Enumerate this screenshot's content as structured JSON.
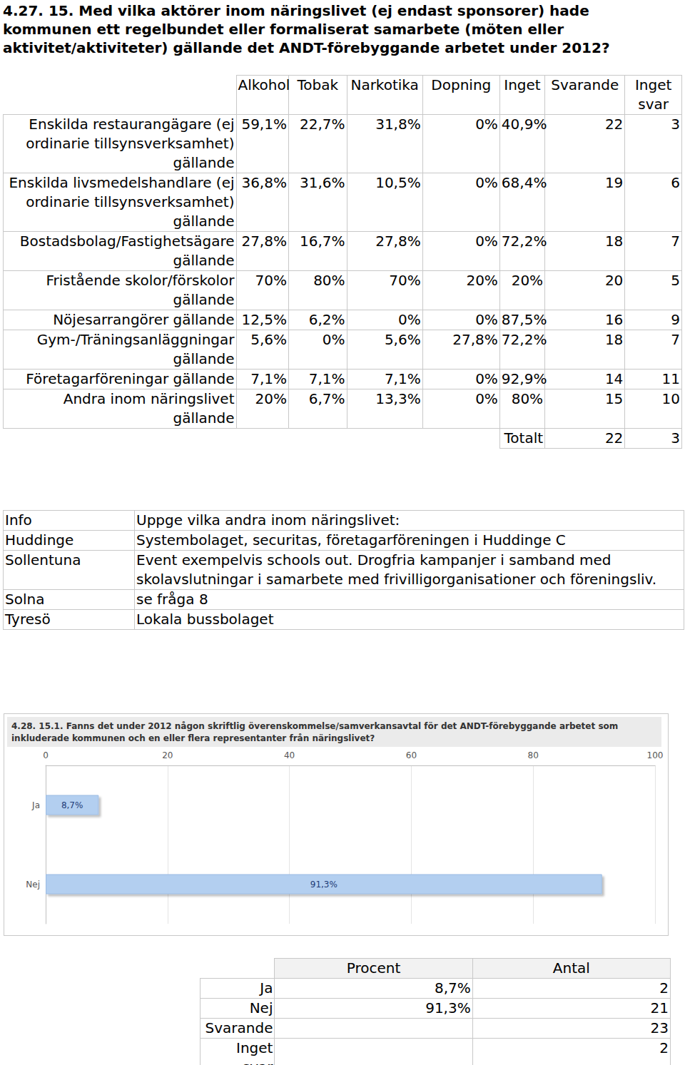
{
  "heading": "4.27. 15. Med vilka aktörer inom näringslivet (ej endast sponsorer) hade kommunen ett regelbundet eller formaliserat samarbete (möten eller aktivitet/aktiviteter) gällande det ANDT-förebyggande arbetet under 2012?",
  "table1": {
    "header": [
      "Alkohol",
      "Tobak",
      "Narkotika",
      "Dopning",
      "Inget",
      "Svarande",
      "Inget svar"
    ],
    "rows": [
      [
        "Enskilda restaurangägare (ej ordinarie tillsynsverksamhet) gällande",
        "59,1%",
        "22,7%",
        "31,8%",
        "0%",
        "40,9%",
        "22",
        "3"
      ],
      [
        "Enskilda livsmedelshandlare (ej ordinarie tillsynsverksamhet) gällande",
        "36,8%",
        "31,6%",
        "10,5%",
        "0%",
        "68,4%",
        "19",
        "6"
      ],
      [
        "Bostadsbolag/Fastighetsägare gällande",
        "27,8%",
        "16,7%",
        "27,8%",
        "0%",
        "72,2%",
        "18",
        "7"
      ],
      [
        "Fristående skolor/förskolor gällande",
        "70%",
        "80%",
        "70%",
        "20%",
        "20%",
        "20",
        "5"
      ],
      [
        "Nöjesarrangörer gällande",
        "12,5%",
        "6,2%",
        "0%",
        "0%",
        "87,5%",
        "16",
        "9"
      ],
      [
        "Gym-/Träningsanläggningar gällande",
        "5,6%",
        "0%",
        "5,6%",
        "27,8%",
        "72,2%",
        "18",
        "7"
      ],
      [
        "Företagarföreningar gällande",
        "7,1%",
        "7,1%",
        "7,1%",
        "0%",
        "92,9%",
        "14",
        "11"
      ],
      [
        "Andra inom näringslivet gällande",
        "20%",
        "6,7%",
        "13,3%",
        "0%",
        "80%",
        "15",
        "10"
      ]
    ],
    "total": [
      "Totalt",
      "22",
      "3"
    ]
  },
  "info": {
    "header": [
      "Info",
      "Uppge vilka andra inom näringslivet:"
    ],
    "rows": [
      [
        "Huddinge",
        "Systembolaget, securitas, företagarföreningen i Huddinge C"
      ],
      [
        "Sollentuna",
        "Event exempelvis schools out. Drogfria kampanjer i samband med skolavslutningar i samarbete med frivilligorganisationer och föreningsliv."
      ],
      [
        "Solna",
        "se fråga 8"
      ],
      [
        "Tyresö",
        "Lokala bussbolaget"
      ]
    ]
  },
  "chart_data": {
    "type": "bar",
    "title": "4.28. 15.1. Fanns det under 2012 någon skriftlig överenskommelse/samverkansavtal för det ANDT-förebyggande arbetet som inkluderade kommunen och en eller flera representanter från näringslivet?",
    "orientation": "horizontal",
    "categories": [
      "Ja",
      "Nej"
    ],
    "values": [
      8.7,
      91.3
    ],
    "value_labels": [
      "8,7%",
      "91,3%"
    ],
    "data_labels": true,
    "color": "#b3cff0",
    "xlim": [
      0,
      100
    ],
    "xticks": [
      0,
      20,
      40,
      60,
      80,
      100
    ],
    "grid": true
  },
  "table2": {
    "header": [
      "Procent",
      "Antal"
    ],
    "rows": [
      [
        "Ja",
        "8,7%",
        "2"
      ],
      [
        "Nej",
        "91,3%",
        "21"
      ],
      [
        "Svarande",
        null,
        "23"
      ],
      [
        "Inget svar",
        null,
        "2"
      ]
    ]
  }
}
